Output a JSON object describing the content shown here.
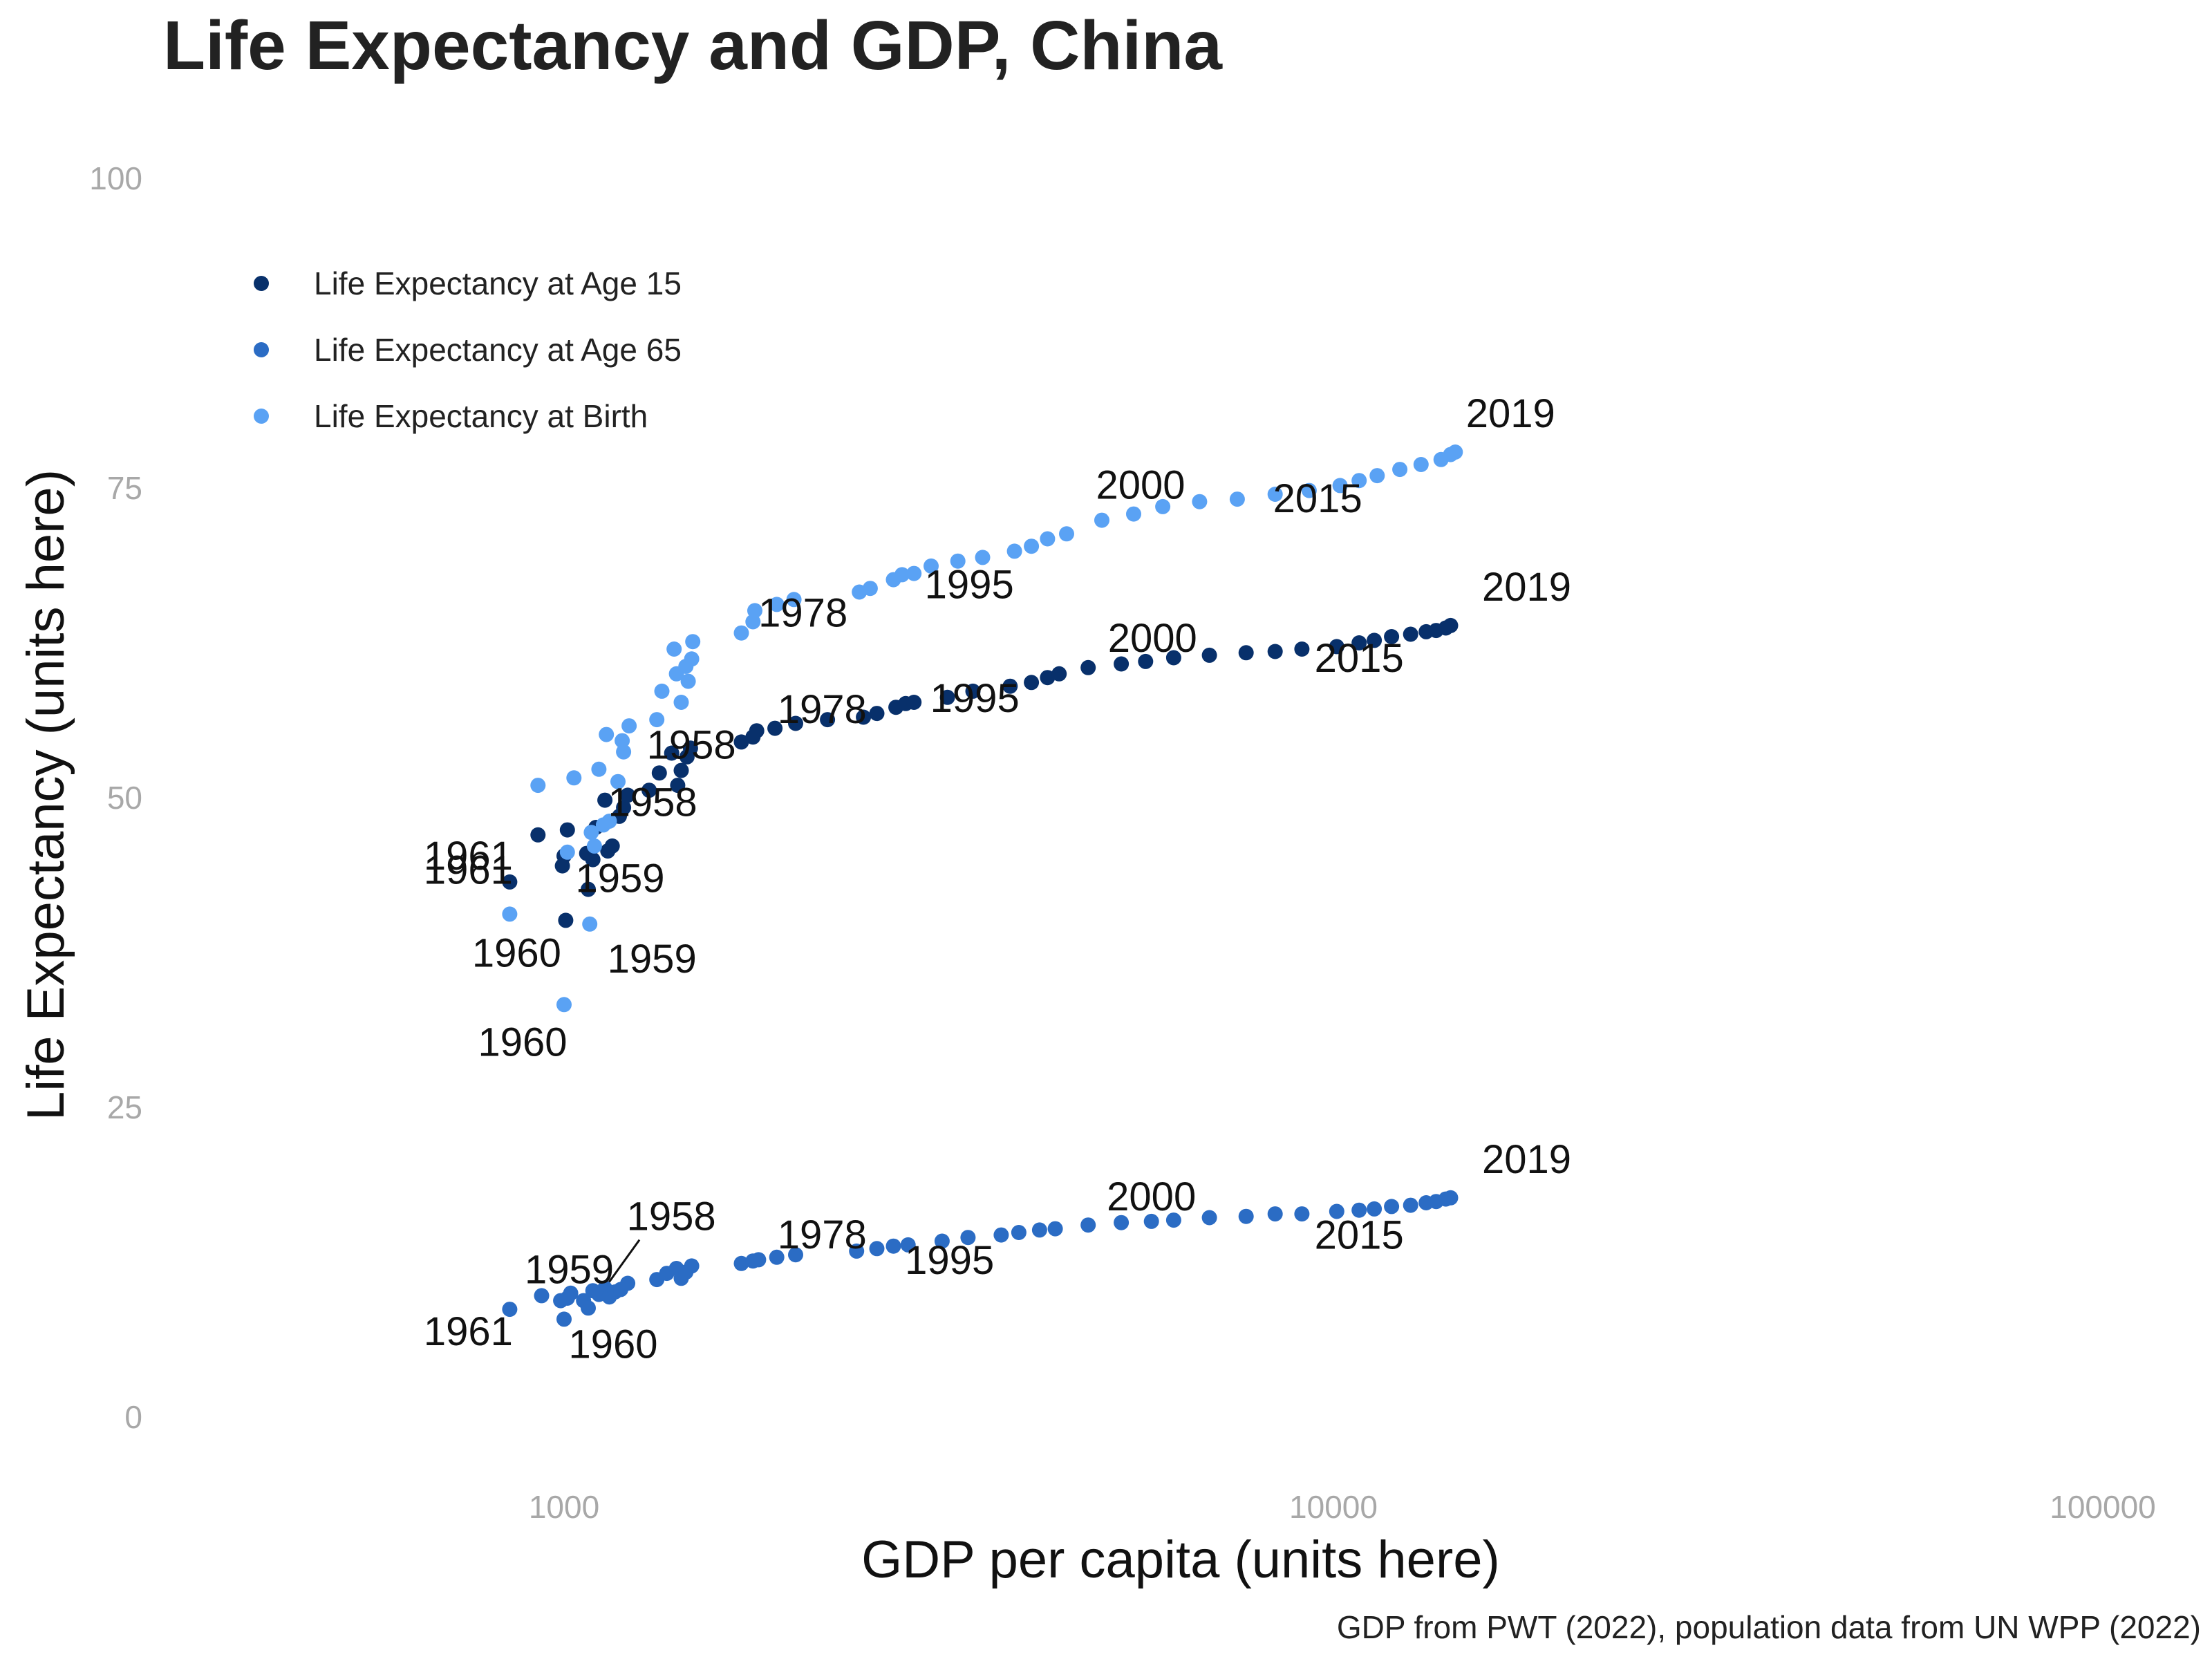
{
  "chart_data": {
    "type": "scatter",
    "title": "Life Expectancy and GDP, China",
    "xlabel": "GDP per capita (units here)",
    "ylabel": "Life Expectancy (units here)",
    "caption": "GDP from PWT (2022), population data from UN WPP (2022)",
    "x_scale": "log",
    "xlim": [
      400,
      110000
    ],
    "ylim": [
      -5,
      105
    ],
    "x_ticks": [
      1000,
      10000,
      100000
    ],
    "x_tick_labels": [
      "1000",
      "10000",
      "100000"
    ],
    "y_ticks": [
      0,
      25,
      50,
      75,
      100
    ],
    "y_tick_labels": [
      "0",
      "25",
      "50",
      "75",
      "100"
    ],
    "grid": false,
    "legend_position": "top-left",
    "series": [
      {
        "name": "Life Expectancy at Age 15",
        "color": "#08306b",
        "points": [
          [
            850,
            43.2
          ],
          [
            925,
            47.0
          ],
          [
            995,
            44.5
          ],
          [
            1000,
            45.3
          ],
          [
            1005,
            40.1
          ],
          [
            1010,
            47.4
          ],
          [
            1070,
            45.5
          ],
          [
            1075,
            42.6
          ],
          [
            1090,
            45.0
          ],
          [
            1100,
            47.6
          ],
          [
            1130,
            49.8
          ],
          [
            1140,
            45.7
          ],
          [
            1155,
            46.1
          ],
          [
            1180,
            48.5
          ],
          [
            1195,
            49.2
          ],
          [
            1210,
            50.2
          ],
          [
            1290,
            50.6
          ],
          [
            1330,
            52.0
          ],
          [
            1380,
            53.6
          ],
          [
            1405,
            51.0
          ],
          [
            1420,
            52.2
          ],
          [
            1445,
            53.3
          ],
          [
            1460,
            54.0
          ],
          [
            1700,
            54.5
          ],
          [
            1760,
            54.9
          ],
          [
            1780,
            55.4
          ],
          [
            1880,
            55.6
          ],
          [
            2000,
            56.0
          ],
          [
            2200,
            56.3
          ],
          [
            2450,
            56.5
          ],
          [
            2550,
            56.8
          ],
          [
            2700,
            57.3
          ],
          [
            2780,
            57.6
          ],
          [
            2850,
            57.7
          ],
          [
            3150,
            58.1
          ],
          [
            3400,
            58.6
          ],
          [
            3800,
            59.0
          ],
          [
            4050,
            59.3
          ],
          [
            4250,
            59.7
          ],
          [
            4400,
            60.0
          ],
          [
            4800,
            60.5
          ],
          [
            5300,
            60.8
          ],
          [
            5700,
            61.0
          ],
          [
            6200,
            61.3
          ],
          [
            6900,
            61.5
          ],
          [
            7700,
            61.7
          ],
          [
            8400,
            61.8
          ],
          [
            9100,
            62.0
          ],
          [
            10100,
            62.2
          ],
          [
            10800,
            62.5
          ],
          [
            11300,
            62.7
          ],
          [
            11900,
            63.0
          ],
          [
            12600,
            63.2
          ],
          [
            13200,
            63.4
          ],
          [
            13600,
            63.5
          ],
          [
            14000,
            63.7
          ],
          [
            14200,
            63.9
          ]
        ],
        "labels": [
          {
            "text": "1961",
            "x": 850,
            "y": 43.2
          },
          {
            "text": "1959",
            "x": 1075,
            "y": 42.6
          },
          {
            "text": "1958",
            "x": 1210,
            "y": 50.2
          },
          {
            "text": "1978",
            "x": 1760,
            "y": 54.9
          },
          {
            "text": "1995",
            "x": 2780,
            "y": 57.6
          },
          {
            "text": "2000",
            "x": 5700,
            "y": 61.0
          },
          {
            "text": "2015",
            "x": 10800,
            "y": 62.5
          },
          {
            "text": "2019",
            "x": 14200,
            "y": 63.9
          }
        ]
      },
      {
        "name": "Life Expectancy at Age 65",
        "color": "#2b6cc4",
        "points": [
          [
            850,
            8.7
          ],
          [
            935,
            9.8
          ],
          [
            990,
            9.4
          ],
          [
            1000,
            7.9
          ],
          [
            1010,
            9.6
          ],
          [
            1020,
            10.0
          ],
          [
            1060,
            9.4
          ],
          [
            1075,
            8.8
          ],
          [
            1090,
            10.2
          ],
          [
            1110,
            9.9
          ],
          [
            1130,
            10.4
          ],
          [
            1145,
            9.7
          ],
          [
            1165,
            10.1
          ],
          [
            1185,
            10.3
          ],
          [
            1210,
            10.8
          ],
          [
            1320,
            11.1
          ],
          [
            1360,
            11.6
          ],
          [
            1400,
            12.0
          ],
          [
            1420,
            11.2
          ],
          [
            1440,
            11.7
          ],
          [
            1465,
            12.2
          ],
          [
            1700,
            12.4
          ],
          [
            1760,
            12.6
          ],
          [
            1790,
            12.7
          ],
          [
            1890,
            12.9
          ],
          [
            2000,
            13.1
          ],
          [
            2400,
            13.4
          ],
          [
            2550,
            13.6
          ],
          [
            2680,
            13.8
          ],
          [
            2800,
            13.9
          ],
          [
            3100,
            14.2
          ],
          [
            3350,
            14.5
          ],
          [
            3700,
            14.7
          ],
          [
            3900,
            14.9
          ],
          [
            4150,
            15.1
          ],
          [
            4350,
            15.2
          ],
          [
            4800,
            15.5
          ],
          [
            5300,
            15.7
          ],
          [
            5800,
            15.8
          ],
          [
            6200,
            15.9
          ],
          [
            6900,
            16.1
          ],
          [
            7700,
            16.2
          ],
          [
            8400,
            16.4
          ],
          [
            9100,
            16.4
          ],
          [
            10100,
            16.6
          ],
          [
            10800,
            16.7
          ],
          [
            11300,
            16.8
          ],
          [
            11900,
            17.0
          ],
          [
            12600,
            17.1
          ],
          [
            13200,
            17.3
          ],
          [
            13600,
            17.4
          ],
          [
            14000,
            17.6
          ],
          [
            14200,
            17.7
          ]
        ],
        "labels": [
          {
            "text": "1961",
            "x": 850,
            "y": 8.7
          },
          {
            "text": "1959",
            "x": 935,
            "y": 9.8
          },
          {
            "text": "1960",
            "x": 1075,
            "y": 8.8
          },
          {
            "text": "1958",
            "x": 1130,
            "y": 10.4
          },
          {
            "text": "1978",
            "x": 1760,
            "y": 12.6
          },
          {
            "text": "1995",
            "x": 2800,
            "y": 13.9
          },
          {
            "text": "2000",
            "x": 5800,
            "y": 15.8
          },
          {
            "text": "2015",
            "x": 10800,
            "y": 16.7
          },
          {
            "text": "2019",
            "x": 14200,
            "y": 17.7
          }
        ]
      },
      {
        "name": "Life Expectancy at Birth",
        "color": "#5aa2f4",
        "points": [
          [
            850,
            40.6
          ],
          [
            925,
            51.0
          ],
          [
            1000,
            33.3
          ],
          [
            1010,
            45.6
          ],
          [
            1030,
            51.6
          ],
          [
            1080,
            39.8
          ],
          [
            1085,
            47.2
          ],
          [
            1095,
            46.1
          ],
          [
            1110,
            52.3
          ],
          [
            1125,
            47.8
          ],
          [
            1135,
            55.1
          ],
          [
            1145,
            48.1
          ],
          [
            1175,
            51.3
          ],
          [
            1190,
            54.6
          ],
          [
            1195,
            53.7
          ],
          [
            1215,
            55.8
          ],
          [
            1320,
            56.3
          ],
          [
            1340,
            58.6
          ],
          [
            1390,
            62.0
          ],
          [
            1400,
            60.0
          ],
          [
            1420,
            57.7
          ],
          [
            1440,
            60.6
          ],
          [
            1450,
            59.4
          ],
          [
            1465,
            61.2
          ],
          [
            1470,
            62.6
          ],
          [
            1700,
            63.3
          ],
          [
            1760,
            64.2
          ],
          [
            1770,
            65.1
          ],
          [
            1890,
            65.6
          ],
          [
            1990,
            66.0
          ],
          [
            2420,
            66.6
          ],
          [
            2500,
            66.9
          ],
          [
            2680,
            67.6
          ],
          [
            2750,
            68.0
          ],
          [
            2850,
            68.1
          ],
          [
            3000,
            68.7
          ],
          [
            3250,
            69.1
          ],
          [
            3500,
            69.4
          ],
          [
            3850,
            69.9
          ],
          [
            4050,
            70.3
          ],
          [
            4250,
            70.9
          ],
          [
            4500,
            71.3
          ],
          [
            5000,
            72.4
          ],
          [
            5500,
            72.9
          ],
          [
            6000,
            73.5
          ],
          [
            6700,
            73.9
          ],
          [
            7500,
            74.1
          ],
          [
            8400,
            74.5
          ],
          [
            9300,
            74.8
          ],
          [
            10200,
            75.2
          ],
          [
            10800,
            75.6
          ],
          [
            11400,
            76.0
          ],
          [
            12200,
            76.5
          ],
          [
            13000,
            76.9
          ],
          [
            13800,
            77.3
          ],
          [
            14200,
            77.7
          ],
          [
            14400,
            77.9
          ]
        ],
        "labels": [
          {
            "text": "1961",
            "x": 850,
            "y": 40.6
          },
          {
            "text": "1960",
            "x": 850,
            "y": 40.6
          },
          {
            "text": "1960",
            "x": 1000,
            "y": 33.3
          },
          {
            "text": "1959",
            "x": 1080,
            "y": 39.8
          },
          {
            "text": "1958",
            "x": 1190,
            "y": 54.6
          },
          {
            "text": "1978",
            "x": 1890,
            "y": 65.6
          },
          {
            "text": "1995",
            "x": 2850,
            "y": 68.1
          },
          {
            "text": "2000",
            "x": 5500,
            "y": 72.9
          },
          {
            "text": "2015",
            "x": 10800,
            "y": 75.6
          },
          {
            "text": "2019",
            "x": 14400,
            "y": 77.9
          }
        ]
      }
    ]
  }
}
